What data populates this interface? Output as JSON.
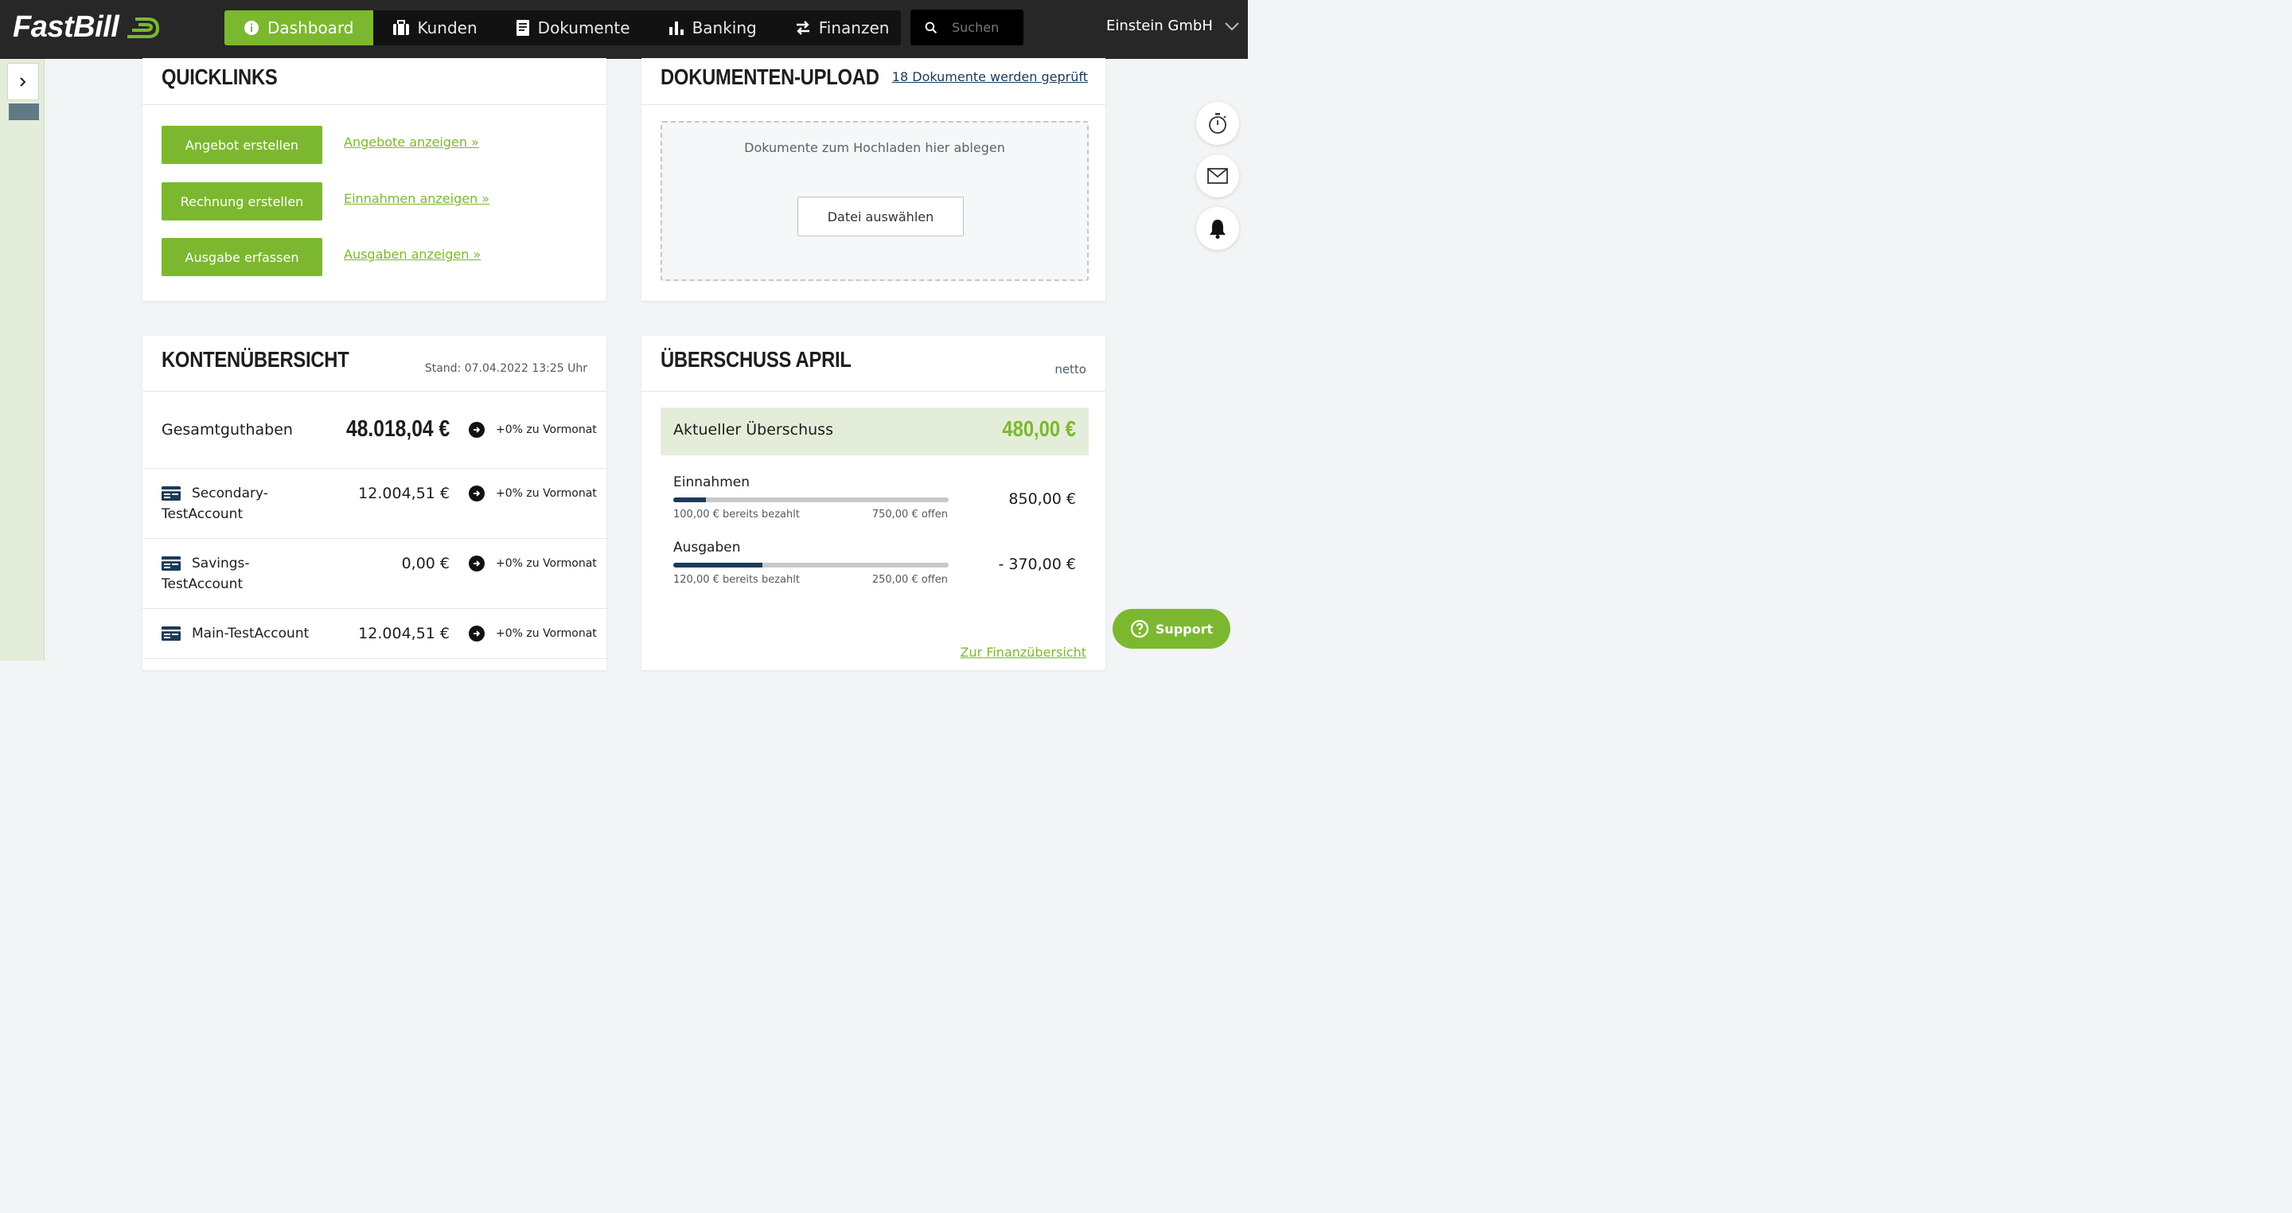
{
  "app": {
    "logo_text": "FastBill"
  },
  "nav": {
    "items": [
      {
        "label": "Dashboard",
        "icon": "info-icon"
      },
      {
        "label": "Kunden",
        "icon": "briefcase-icon"
      },
      {
        "label": "Dokumente",
        "icon": "document-icon"
      },
      {
        "label": "Banking",
        "icon": "bar-chart-icon"
      },
      {
        "label": "Finanzen",
        "icon": "transfer-arrows-icon"
      }
    ],
    "active": "Dashboard"
  },
  "search": {
    "placeholder": "Suchen"
  },
  "company": {
    "name": "Einstein GmbH"
  },
  "quicklinks": {
    "title": "QUICKLINKS",
    "buttons": [
      "Angebot erstellen",
      "Rechnung erstellen",
      "Ausgabe erfassen"
    ],
    "links": [
      "Angebote anzeigen »",
      "Einnahmen anzeigen »",
      "Ausgaben anzeigen »"
    ]
  },
  "upload": {
    "title": "DOKUMENTEN-UPLOAD",
    "status_link": "18 Dokumente werden geprüft",
    "drop_text": "Dokumente zum Hochladen hier ablegen",
    "button": "Datei auswählen"
  },
  "accounts": {
    "title": "KONTENÜBERSICHT",
    "stand": "Stand: 07.04.2022 13:25 Uhr",
    "total": {
      "label": "Gesamtguthaben",
      "amount": "48.018,04 €",
      "change": "+0% zu Vormonat"
    },
    "rows": [
      {
        "line1": "Secondary-",
        "line2": "TestAccount",
        "amount": "12.004,51 €",
        "change": "+0% zu Vormonat"
      },
      {
        "line1": "Savings-",
        "line2": "TestAccount",
        "amount": "0,00 €",
        "change": "+0% zu Vormonat"
      },
      {
        "line1": "Main-TestAccount",
        "line2": "",
        "amount": "12.004,51 €",
        "change": "+0% zu Vormonat"
      }
    ]
  },
  "surplus": {
    "title": "ÜBERSCHUSS APRIL",
    "mode": "netto",
    "current_label": "Aktueller Überschuss",
    "current_value": "480,00 €",
    "income": {
      "label": "Einnahmen",
      "paid": "100,00 € bereits bezahlt",
      "open": "750,00 € offen",
      "amount": "850,00 €",
      "paid_fraction": 0.118
    },
    "expenses": {
      "label": "Ausgaben",
      "paid": "120,00 € bereits bezahlt",
      "open": "250,00 € offen",
      "amount": "- 370,00 €",
      "paid_fraction": 0.324
    },
    "link": "Zur Finanzübersicht"
  },
  "support": {
    "label": "Support"
  },
  "colors": {
    "accent": "#7cb82f",
    "dark": "#272727",
    "navy": "#1c3a57"
  }
}
